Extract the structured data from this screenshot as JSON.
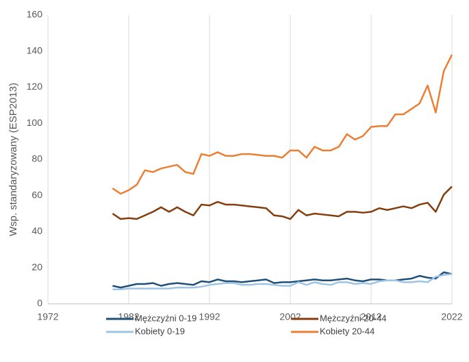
{
  "chart_data": {
    "type": "line",
    "y_label": "Wsp. standaryzowany (ESP2013)",
    "x": [
      1980,
      1981,
      1982,
      1983,
      1984,
      1985,
      1986,
      1987,
      1988,
      1989,
      1990,
      1991,
      1992,
      1993,
      1994,
      1995,
      1996,
      1997,
      1998,
      1999,
      2000,
      2001,
      2002,
      2003,
      2004,
      2005,
      2006,
      2007,
      2008,
      2009,
      2010,
      2011,
      2012,
      2013,
      2014,
      2015,
      2016,
      2017,
      2018,
      2019,
      2020,
      2021,
      2022
    ],
    "series": [
      {
        "name": "Mężczyźni 0-19",
        "color": "#1f4e79",
        "values": [
          10,
          9,
          10,
          11,
          11,
          11.5,
          10,
          11,
          11.5,
          11,
          10.5,
          12.5,
          12,
          13.5,
          12.5,
          12.5,
          12,
          12.5,
          13,
          13.5,
          11.5,
          12,
          12,
          12.5,
          13,
          13.5,
          13,
          13,
          13.5,
          14,
          13,
          12.5,
          13.5,
          13.5,
          13,
          13,
          13.5,
          14,
          15.5,
          14.5,
          14,
          17.5,
          16.5
        ]
      },
      {
        "name": "Mężczyźni 20-44",
        "color": "#843c0c",
        "values": [
          50,
          47,
          47.5,
          47,
          49,
          51,
          53.5,
          51,
          53.5,
          51,
          49,
          55,
          54.5,
          56.5,
          55,
          55,
          54.5,
          54,
          53.5,
          53,
          49,
          48.5,
          47,
          52,
          49,
          50,
          49.5,
          49,
          48.5,
          51,
          51,
          50.5,
          51,
          53,
          52,
          53,
          54,
          53,
          55,
          56,
          51,
          60.5,
          65
        ]
      },
      {
        "name": "Kobiety 0-19",
        "color": "#9dc3e6",
        "values": [
          8,
          8,
          8.5,
          8.5,
          8.5,
          8.5,
          8.5,
          8.5,
          9,
          9,
          9,
          9.5,
          10.5,
          11,
          11.5,
          11.5,
          10.5,
          10.5,
          11,
          11,
          10.5,
          10,
          10,
          12,
          10.5,
          12,
          11,
          10.5,
          12,
          12,
          11,
          11.5,
          11,
          12.5,
          13,
          13,
          12,
          12,
          12.5,
          12,
          15,
          16,
          16.5
        ]
      },
      {
        "name": "Kobiety 20-44",
        "color": "#ed7d31",
        "values": [
          64,
          61,
          63,
          66,
          74,
          73,
          75,
          76,
          77,
          73,
          72,
          83,
          82,
          84,
          82,
          82,
          83,
          83,
          82.5,
          82,
          82,
          81,
          85,
          85,
          81,
          87,
          85,
          85,
          87,
          94,
          91,
          93,
          98,
          98.5,
          98.5,
          105,
          105,
          108,
          111,
          121,
          106,
          129,
          138
        ]
      }
    ],
    "xlim": [
      1972,
      2022
    ],
    "xticks": [
      1972,
      1982,
      1992,
      2002,
      2012,
      2022
    ],
    "ylim": [
      0,
      160
    ],
    "yticks": [
      0,
      20,
      40,
      60,
      80,
      100,
      120,
      140,
      160
    ],
    "grid": true
  }
}
